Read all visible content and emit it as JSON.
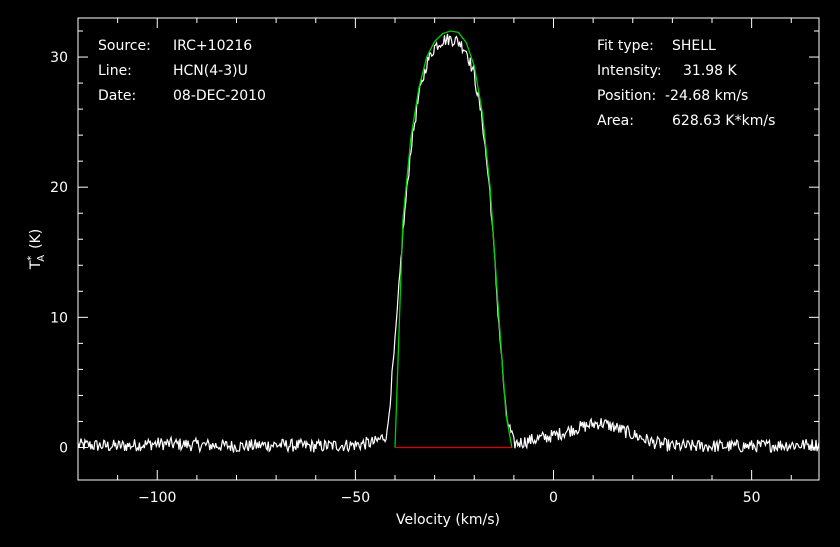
{
  "header_left": {
    "source_label": "Source:",
    "source_value": "IRC+10216",
    "line_label": "Line:",
    "line_value": "HCN(4-3)U",
    "date_label": "Date:",
    "date_value": "08-DEC-2010"
  },
  "header_right": {
    "fit_label": "Fit type:",
    "fit_value": "SHELL",
    "intensity_label": "Intensity:",
    "intensity_value": "31.98 K",
    "position_label": "Position:",
    "position_value": "-24.68 km/s",
    "area_label": "Area:",
    "area_value": "628.63 K*km/s"
  },
  "colors": {
    "background": "#000000",
    "spectrum": "#ffffff",
    "fit": "#00cc00",
    "baseline": "#dd0000"
  },
  "chart_data": {
    "type": "line",
    "xlabel": "Velocity (km/s)",
    "ylabel_main": "T",
    "ylabel_sup": "*",
    "ylabel_sub": "A",
    "ylabel_unit": "(K)",
    "xlim": [
      -120,
      67
    ],
    "ylim": [
      -2.5,
      33
    ],
    "xticks": [
      -100,
      -50,
      0,
      50
    ],
    "xtick_labels": [
      "-100",
      "-50",
      "0",
      "50"
    ],
    "yticks": [
      0,
      10,
      20,
      30
    ],
    "ytick_labels": [
      "0",
      "10",
      "20",
      "30"
    ],
    "grid": false,
    "series": [
      {
        "role": "spectrum",
        "x": [
          -120,
          -110,
          -100,
          -90,
          -80,
          -70,
          -60,
          -50,
          -45,
          -42,
          -40,
          -38,
          -36,
          -34,
          -32,
          -30,
          -28,
          -26,
          -24,
          -22,
          -20,
          -18,
          -16,
          -14,
          -12,
          -10,
          -8,
          -5,
          0,
          5,
          10,
          12,
          15,
          20,
          25,
          30,
          40,
          50,
          60,
          67
        ],
        "y": [
          0.2,
          0.1,
          0.3,
          0.2,
          0.1,
          0.2,
          0.1,
          0.2,
          0.4,
          1.0,
          8.0,
          16.5,
          23.0,
          27.0,
          29.5,
          30.8,
          31.3,
          31.4,
          31.2,
          30.5,
          28.6,
          25.2,
          19.5,
          10.5,
          2.5,
          0.3,
          0.4,
          0.6,
          0.9,
          1.4,
          1.8,
          1.9,
          1.6,
          1.0,
          0.4,
          0.1,
          0.1,
          0.1,
          0.2,
          0.2
        ]
      },
      {
        "role": "fit",
        "x": [
          -40,
          -38,
          -36,
          -34,
          -32,
          -30,
          -28,
          -26,
          -24,
          -22,
          -20,
          -18,
          -16,
          -14,
          -12,
          -10.5
        ],
        "y": [
          0,
          17.5,
          23.8,
          27.6,
          30.0,
          31.2,
          31.8,
          32.0,
          31.9,
          31.1,
          29.3,
          25.8,
          20.0,
          11.0,
          2.5,
          0
        ]
      },
      {
        "role": "baseline",
        "x": [
          -40,
          -10.5
        ],
        "y": [
          0,
          0
        ]
      }
    ]
  }
}
